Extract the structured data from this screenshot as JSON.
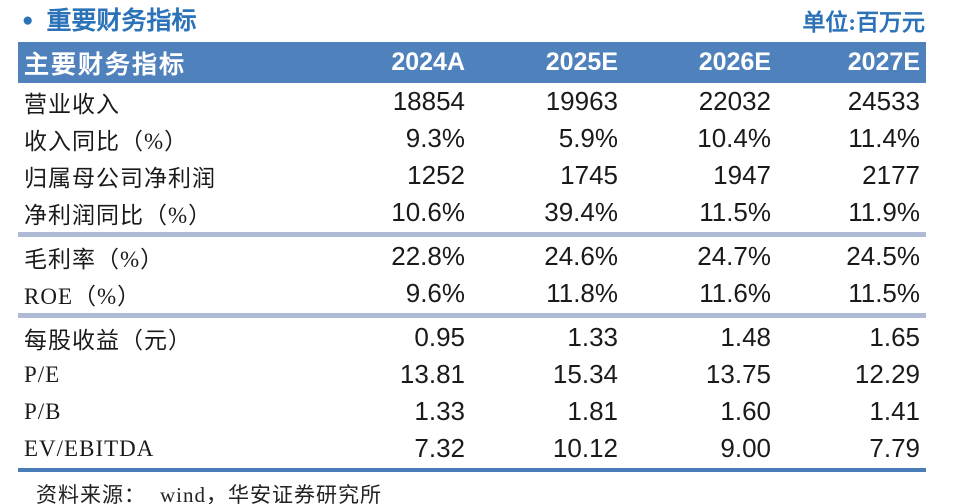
{
  "page": {
    "title": "重要财务指标",
    "bullet": "●",
    "unit_label": "单位:百万元",
    "source_label": "资料来源：",
    "source_text": "wind，华安证券研究所"
  },
  "colors": {
    "accent": "#2B72B8",
    "header_bg": "#4F81BD",
    "separator": "#AEBAD6",
    "bottom_border": "#4A7EBB",
    "text": "#1A1A1A"
  },
  "chart_data": {
    "type": "table",
    "header": [
      "主要财务指标",
      "2024A",
      "2025E",
      "2026E",
      "2027E"
    ],
    "groups": [
      {
        "rows": [
          {
            "label": "营业收入",
            "values": [
              "18854",
              "19963",
              "22032",
              "24533"
            ]
          },
          {
            "label": "收入同比（%）",
            "values": [
              "9.3%",
              "5.9%",
              "10.4%",
              "11.4%"
            ]
          },
          {
            "label": "归属母公司净利润",
            "values": [
              "1252",
              "1745",
              "1947",
              "2177"
            ]
          },
          {
            "label": "净利润同比（%）",
            "values": [
              "10.6%",
              "39.4%",
              "11.5%",
              "11.9%"
            ]
          }
        ]
      },
      {
        "rows": [
          {
            "label": "毛利率（%）",
            "values": [
              "22.8%",
              "24.6%",
              "24.7%",
              "24.5%"
            ]
          },
          {
            "label": "ROE（%）",
            "values": [
              "9.6%",
              "11.8%",
              "11.6%",
              "11.5%"
            ]
          }
        ]
      },
      {
        "rows": [
          {
            "label": "每股收益（元）",
            "values": [
              "0.95",
              "1.33",
              "1.48",
              "1.65"
            ]
          },
          {
            "label": "P/E",
            "values": [
              "13.81",
              "15.34",
              "13.75",
              "12.29"
            ]
          },
          {
            "label": "P/B",
            "values": [
              "1.33",
              "1.81",
              "1.60",
              "1.41"
            ]
          },
          {
            "label": "EV/EBITDA",
            "values": [
              "7.32",
              "10.12",
              "9.00",
              "7.79"
            ]
          }
        ]
      }
    ]
  }
}
